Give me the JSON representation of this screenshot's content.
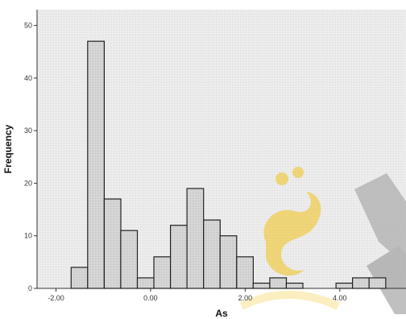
{
  "chart_data": {
    "type": "bar",
    "subtype": "histogram",
    "xlabel": "As",
    "ylabel": "Frequency",
    "x_tick_labels": [
      "-2.00",
      "0.00",
      "2.00",
      "4.00"
    ],
    "x_tick_values": [
      -2,
      0,
      2,
      4
    ],
    "y_tick_labels": [
      "0",
      "10",
      "20",
      "30",
      "40",
      "50"
    ],
    "y_tick_values": [
      0,
      10,
      20,
      30,
      40,
      50
    ],
    "xlim": [
      -2.4,
      5.4
    ],
    "ylim": [
      0,
      53
    ],
    "bin_width": 0.35,
    "bins": [
      {
        "start": -1.68,
        "count": 4
      },
      {
        "start": -1.33,
        "count": 47
      },
      {
        "start": -0.98,
        "count": 17
      },
      {
        "start": -0.63,
        "count": 11
      },
      {
        "start": -0.28,
        "count": 2
      },
      {
        "start": 0.07,
        "count": 6
      },
      {
        "start": 0.42,
        "count": 12
      },
      {
        "start": 0.77,
        "count": 19
      },
      {
        "start": 1.12,
        "count": 13
      },
      {
        "start": 1.47,
        "count": 10
      },
      {
        "start": 1.82,
        "count": 6
      },
      {
        "start": 2.17,
        "count": 1
      },
      {
        "start": 2.52,
        "count": 2
      },
      {
        "start": 2.87,
        "count": 1
      },
      {
        "start": 3.22,
        "count": 0
      },
      {
        "start": 3.57,
        "count": 0
      },
      {
        "start": 3.92,
        "count": 1
      },
      {
        "start": 4.27,
        "count": 2
      },
      {
        "start": 4.62,
        "count": 2
      }
    ],
    "grid": false,
    "legend": "none"
  },
  "colors": {
    "bar_fill": "#d4d4d4",
    "bar_stroke": "#222222",
    "plot_background": "#ececec",
    "watermark": "#f2c21b",
    "watermark_gray": "#a8a8a8"
  }
}
